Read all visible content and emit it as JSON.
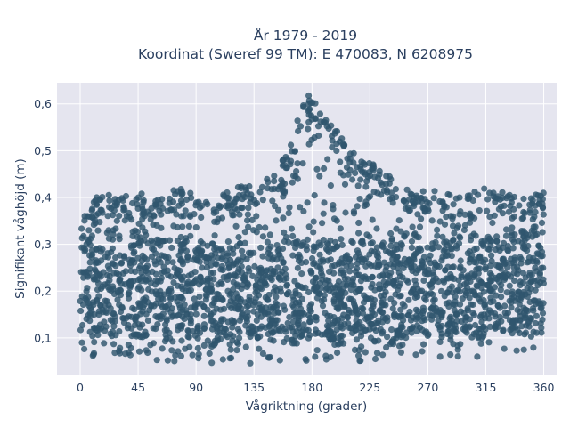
{
  "chart_data": {
    "type": "scatter",
    "title_lines": [
      "År 1979 - 2019",
      "Koordinat (Sweref 99 TM): E 470083, N 6208975"
    ],
    "xlabel": "Vågriktning (grader)",
    "ylabel": "Signifikant våghöjd (m)",
    "xlim": [
      -18,
      370
    ],
    "ylim": [
      0.02,
      0.645
    ],
    "x_ticks": [
      0,
      45,
      90,
      135,
      180,
      225,
      270,
      315,
      360
    ],
    "x_tick_labels": [
      "0",
      "45",
      "90",
      "135",
      "180",
      "225",
      "270",
      "315",
      "360"
    ],
    "y_ticks": [
      0.1,
      0.2,
      0.3,
      0.4,
      0.5,
      0.6
    ],
    "y_tick_labels": [
      "0,1",
      "0,2",
      "0,3",
      "0,4",
      "0,5",
      "0,6"
    ],
    "grid": true,
    "marker_color": "#2f566e",
    "background_color": "#e5e5ef",
    "envelope": {
      "direction": [
        0,
        10,
        20,
        30,
        45,
        60,
        75,
        90,
        100,
        110,
        120,
        130,
        140,
        150,
        160,
        165,
        170,
        175,
        180,
        185,
        190,
        195,
        200,
        205,
        210,
        220,
        230,
        240,
        250,
        260,
        270,
        280,
        290,
        300,
        315,
        330,
        345,
        360
      ],
      "max_height": [
        0.38,
        0.4,
        0.41,
        0.4,
        0.41,
        0.4,
        0.42,
        0.41,
        0.4,
        0.41,
        0.42,
        0.43,
        0.43,
        0.45,
        0.49,
        0.53,
        0.59,
        0.62,
        0.62,
        0.61,
        0.59,
        0.56,
        0.54,
        0.52,
        0.5,
        0.48,
        0.47,
        0.45,
        0.43,
        0.42,
        0.41,
        0.42,
        0.4,
        0.41,
        0.42,
        0.41,
        0.4,
        0.41
      ],
      "min_height": [
        0.07,
        0.06,
        0.07,
        0.06,
        0.06,
        0.05,
        0.05,
        0.05,
        0.04,
        0.05,
        0.05,
        0.04,
        0.05,
        0.05,
        0.05,
        0.04,
        0.05,
        0.05,
        0.05,
        0.05,
        0.05,
        0.05,
        0.04,
        0.04,
        0.05,
        0.05,
        0.05,
        0.05,
        0.05,
        0.06,
        0.06,
        0.06,
        0.06,
        0.06,
        0.06,
        0.07,
        0.07,
        0.07
      ]
    }
  }
}
